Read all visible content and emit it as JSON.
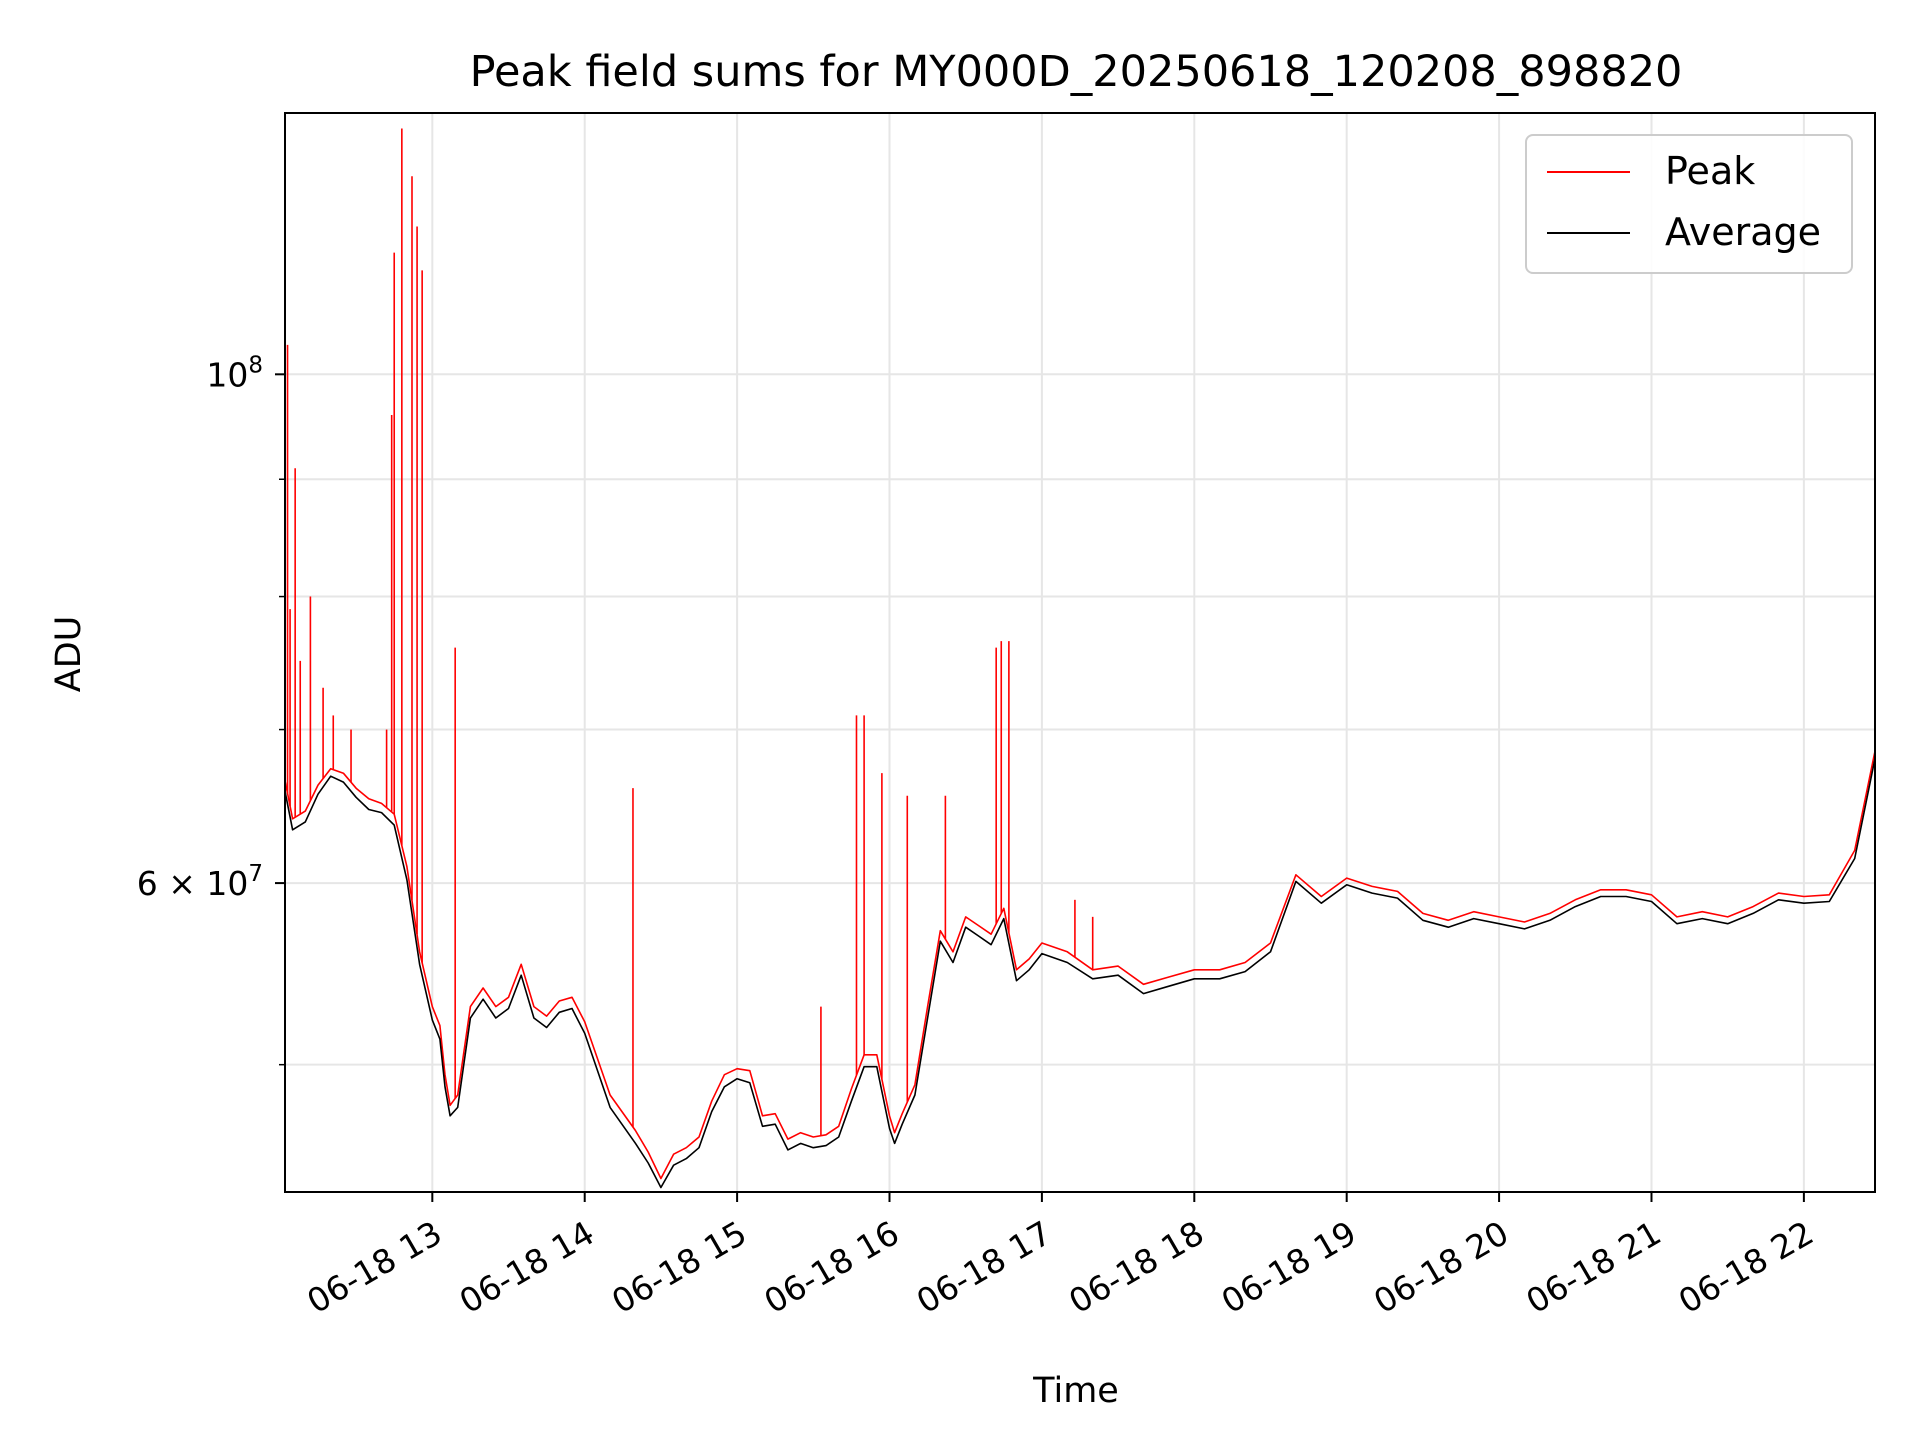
{
  "chart_data": {
    "type": "line",
    "title": "Peak field sums for MY000D_20250618_120208_898820",
    "xlabel": "Time",
    "ylabel": "ADU",
    "y_scale": "log",
    "ylim": [
      44000000,
      130000000
    ],
    "xlim": [
      "2025-06-18 12:02",
      "2025-06-18 22:28"
    ],
    "grid": true,
    "legend_position": "top-right",
    "x_ticks": [
      {
        "label": "06-18 13",
        "value": "2025-06-18 13:00"
      },
      {
        "label": "06-18 14",
        "value": "2025-06-18 14:00"
      },
      {
        "label": "06-18 15",
        "value": "2025-06-18 15:00"
      },
      {
        "label": "06-18 16",
        "value": "2025-06-18 16:00"
      },
      {
        "label": "06-18 17",
        "value": "2025-06-18 17:00"
      },
      {
        "label": "06-18 18",
        "value": "2025-06-18 18:00"
      },
      {
        "label": "06-18 19",
        "value": "2025-06-18 19:00"
      },
      {
        "label": "06-18 20",
        "value": "2025-06-18 20:00"
      },
      {
        "label": "06-18 21",
        "value": "2025-06-18 21:00"
      },
      {
        "label": "06-18 22",
        "value": "2025-06-18 22:00"
      }
    ],
    "y_ticks": [
      {
        "label": "10",
        "sup": "8",
        "value": 100000000
      },
      {
        "label": "6 × 10",
        "sup": "7",
        "value": 60000000
      }
    ],
    "y_minor_grid": [
      50000000,
      70000000,
      80000000,
      90000000
    ],
    "series": [
      {
        "name": "Peak",
        "color": "#ff0000",
        "points": [
          [
            "2025-06-18 12:02",
            66500000
          ],
          [
            "2025-06-18 12:05",
            64000000
          ],
          [
            "2025-06-18 12:10",
            64500000
          ],
          [
            "2025-06-18 12:15",
            66200000
          ],
          [
            "2025-06-18 12:20",
            67300000
          ],
          [
            "2025-06-18 12:25",
            67000000
          ],
          [
            "2025-06-18 12:30",
            66000000
          ],
          [
            "2025-06-18 12:35",
            65300000
          ],
          [
            "2025-06-18 12:40",
            65000000
          ],
          [
            "2025-06-18 12:45",
            64300000
          ],
          [
            "2025-06-18 12:50",
            61000000
          ],
          [
            "2025-06-18 12:55",
            56000000
          ],
          [
            "2025-06-18 13:00",
            53000000
          ],
          [
            "2025-06-18 13:03",
            52000000
          ],
          [
            "2025-06-18 13:05",
            49500000
          ],
          [
            "2025-06-18 13:07",
            48000000
          ],
          [
            "2025-06-18 13:10",
            48500000
          ],
          [
            "2025-06-18 13:15",
            53000000
          ],
          [
            "2025-06-18 13:20",
            54000000
          ],
          [
            "2025-06-18 13:25",
            53000000
          ],
          [
            "2025-06-18 13:30",
            53500000
          ],
          [
            "2025-06-18 13:35",
            55300000
          ],
          [
            "2025-06-18 13:40",
            53000000
          ],
          [
            "2025-06-18 13:45",
            52500000
          ],
          [
            "2025-06-18 13:50",
            53300000
          ],
          [
            "2025-06-18 13:55",
            53500000
          ],
          [
            "2025-06-18 14:00",
            52200000
          ],
          [
            "2025-06-18 14:10",
            48500000
          ],
          [
            "2025-06-18 14:20",
            46800000
          ],
          [
            "2025-06-18 14:25",
            45800000
          ],
          [
            "2025-06-18 14:30",
            44600000
          ],
          [
            "2025-06-18 14:35",
            45700000
          ],
          [
            "2025-06-18 14:40",
            46000000
          ],
          [
            "2025-06-18 14:45",
            46500000
          ],
          [
            "2025-06-18 14:50",
            48200000
          ],
          [
            "2025-06-18 14:55",
            49500000
          ],
          [
            "2025-06-18 15:00",
            49800000
          ],
          [
            "2025-06-18 15:05",
            49700000
          ],
          [
            "2025-06-18 15:10",
            47500000
          ],
          [
            "2025-06-18 15:15",
            47600000
          ],
          [
            "2025-06-18 15:20",
            46400000
          ],
          [
            "2025-06-18 15:25",
            46700000
          ],
          [
            "2025-06-18 15:30",
            46500000
          ],
          [
            "2025-06-18 15:35",
            46600000
          ],
          [
            "2025-06-18 15:40",
            47000000
          ],
          [
            "2025-06-18 15:45",
            48800000
          ],
          [
            "2025-06-18 15:50",
            50500000
          ],
          [
            "2025-06-18 15:55",
            50500000
          ],
          [
            "2025-06-18 16:00",
            47500000
          ],
          [
            "2025-06-18 16:02",
            46700000
          ],
          [
            "2025-06-18 16:05",
            47600000
          ],
          [
            "2025-06-18 16:10",
            49000000
          ],
          [
            "2025-06-18 16:15",
            53000000
          ],
          [
            "2025-06-18 16:20",
            57200000
          ],
          [
            "2025-06-18 16:25",
            56000000
          ],
          [
            "2025-06-18 16:30",
            58000000
          ],
          [
            "2025-06-18 16:35",
            57500000
          ],
          [
            "2025-06-18 16:40",
            57000000
          ],
          [
            "2025-06-18 16:45",
            58500000
          ],
          [
            "2025-06-18 16:50",
            55000000
          ],
          [
            "2025-06-18 16:55",
            55600000
          ],
          [
            "2025-06-18 17:00",
            56500000
          ],
          [
            "2025-06-18 17:10",
            56000000
          ],
          [
            "2025-06-18 17:20",
            55000000
          ],
          [
            "2025-06-18 17:30",
            55200000
          ],
          [
            "2025-06-18 17:40",
            54200000
          ],
          [
            "2025-06-18 17:50",
            54600000
          ],
          [
            "2025-06-18 18:00",
            55000000
          ],
          [
            "2025-06-18 18:10",
            55000000
          ],
          [
            "2025-06-18 18:20",
            55400000
          ],
          [
            "2025-06-18 18:30",
            56500000
          ],
          [
            "2025-06-18 18:40",
            60500000
          ],
          [
            "2025-06-18 18:50",
            59200000
          ],
          [
            "2025-06-18 19:00",
            60300000
          ],
          [
            "2025-06-18 19:10",
            59800000
          ],
          [
            "2025-06-18 19:20",
            59500000
          ],
          [
            "2025-06-18 19:30",
            58200000
          ],
          [
            "2025-06-18 19:40",
            57800000
          ],
          [
            "2025-06-18 19:50",
            58300000
          ],
          [
            "2025-06-18 20:00",
            58000000
          ],
          [
            "2025-06-18 20:10",
            57700000
          ],
          [
            "2025-06-18 20:20",
            58200000
          ],
          [
            "2025-06-18 20:30",
            59000000
          ],
          [
            "2025-06-18 20:40",
            59600000
          ],
          [
            "2025-06-18 20:50",
            59600000
          ],
          [
            "2025-06-18 21:00",
            59300000
          ],
          [
            "2025-06-18 21:10",
            58000000
          ],
          [
            "2025-06-18 21:20",
            58300000
          ],
          [
            "2025-06-18 21:30",
            58000000
          ],
          [
            "2025-06-18 21:40",
            58600000
          ],
          [
            "2025-06-18 21:50",
            59400000
          ],
          [
            "2025-06-18 22:00",
            59200000
          ],
          [
            "2025-06-18 22:10",
            59300000
          ],
          [
            "2025-06-18 22:20",
            62000000
          ],
          [
            "2025-06-18 22:28",
            68500000
          ]
        ],
        "spikes": [
          [
            "2025-06-18 12:03",
            103000000
          ],
          [
            "2025-06-18 12:04",
            79000000
          ],
          [
            "2025-06-18 12:06",
            91000000
          ],
          [
            "2025-06-18 12:08",
            75000000
          ],
          [
            "2025-06-18 12:12",
            80000000
          ],
          [
            "2025-06-18 12:17",
            73000000
          ],
          [
            "2025-06-18 12:21",
            71000000
          ],
          [
            "2025-06-18 12:28",
            70000000
          ],
          [
            "2025-06-18 12:42",
            70000000
          ],
          [
            "2025-06-18 12:44",
            96000000
          ],
          [
            "2025-06-18 12:45",
            113000000
          ],
          [
            "2025-06-18 12:48",
            128000000
          ],
          [
            "2025-06-18 12:52",
            122000000
          ],
          [
            "2025-06-18 12:54",
            116000000
          ],
          [
            "2025-06-18 12:56",
            111000000
          ],
          [
            "2025-06-18 13:09",
            76000000
          ],
          [
            "2025-06-18 14:19",
            66000000
          ],
          [
            "2025-06-18 15:33",
            53000000
          ],
          [
            "2025-06-18 15:47",
            71000000
          ],
          [
            "2025-06-18 15:50",
            71000000
          ],
          [
            "2025-06-18 15:57",
            67000000
          ],
          [
            "2025-06-18 16:07",
            65500000
          ],
          [
            "2025-06-18 16:22",
            65500000
          ],
          [
            "2025-06-18 16:42",
            76000000
          ],
          [
            "2025-06-18 16:44",
            76500000
          ],
          [
            "2025-06-18 16:47",
            76500000
          ],
          [
            "2025-06-18 17:13",
            59000000
          ],
          [
            "2025-06-18 17:20",
            58000000
          ]
        ]
      },
      {
        "name": "Average",
        "color": "#000000",
        "points": [
          [
            "2025-06-18 12:02",
            65800000
          ],
          [
            "2025-06-18 12:05",
            63300000
          ],
          [
            "2025-06-18 12:10",
            63800000
          ],
          [
            "2025-06-18 12:15",
            65600000
          ],
          [
            "2025-06-18 12:20",
            66800000
          ],
          [
            "2025-06-18 12:25",
            66400000
          ],
          [
            "2025-06-18 12:30",
            65400000
          ],
          [
            "2025-06-18 12:35",
            64600000
          ],
          [
            "2025-06-18 12:40",
            64400000
          ],
          [
            "2025-06-18 12:45",
            63600000
          ],
          [
            "2025-06-18 12:50",
            60200000
          ],
          [
            "2025-06-18 12:55",
            55300000
          ],
          [
            "2025-06-18 13:00",
            52300000
          ],
          [
            "2025-06-18 13:03",
            51300000
          ],
          [
            "2025-06-18 13:05",
            48900000
          ],
          [
            "2025-06-18 13:07",
            47500000
          ],
          [
            "2025-06-18 13:10",
            47900000
          ],
          [
            "2025-06-18 13:15",
            52400000
          ],
          [
            "2025-06-18 13:20",
            53400000
          ],
          [
            "2025-06-18 13:25",
            52400000
          ],
          [
            "2025-06-18 13:30",
            52900000
          ],
          [
            "2025-06-18 13:35",
            54700000
          ],
          [
            "2025-06-18 13:40",
            52400000
          ],
          [
            "2025-06-18 13:45",
            51900000
          ],
          [
            "2025-06-18 13:50",
            52700000
          ],
          [
            "2025-06-18 13:55",
            52900000
          ],
          [
            "2025-06-18 14:00",
            51600000
          ],
          [
            "2025-06-18 14:10",
            47900000
          ],
          [
            "2025-06-18 14:20",
            46200000
          ],
          [
            "2025-06-18 14:25",
            45300000
          ],
          [
            "2025-06-18 14:30",
            44200000
          ],
          [
            "2025-06-18 14:35",
            45200000
          ],
          [
            "2025-06-18 14:40",
            45500000
          ],
          [
            "2025-06-18 14:45",
            46000000
          ],
          [
            "2025-06-18 14:50",
            47700000
          ],
          [
            "2025-06-18 14:55",
            48900000
          ],
          [
            "2025-06-18 15:00",
            49300000
          ],
          [
            "2025-06-18 15:05",
            49100000
          ],
          [
            "2025-06-18 15:10",
            47000000
          ],
          [
            "2025-06-18 15:15",
            47100000
          ],
          [
            "2025-06-18 15:20",
            45900000
          ],
          [
            "2025-06-18 15:25",
            46200000
          ],
          [
            "2025-06-18 15:30",
            46000000
          ],
          [
            "2025-06-18 15:35",
            46100000
          ],
          [
            "2025-06-18 15:40",
            46500000
          ],
          [
            "2025-06-18 15:45",
            48200000
          ],
          [
            "2025-06-18 15:50",
            49900000
          ],
          [
            "2025-06-18 15:55",
            49900000
          ],
          [
            "2025-06-18 16:00",
            46900000
          ],
          [
            "2025-06-18 16:02",
            46200000
          ],
          [
            "2025-06-18 16:05",
            47100000
          ],
          [
            "2025-06-18 16:10",
            48500000
          ],
          [
            "2025-06-18 16:15",
            52400000
          ],
          [
            "2025-06-18 16:20",
            56600000
          ],
          [
            "2025-06-18 16:25",
            55400000
          ],
          [
            "2025-06-18 16:30",
            57400000
          ],
          [
            "2025-06-18 16:35",
            56900000
          ],
          [
            "2025-06-18 16:40",
            56400000
          ],
          [
            "2025-06-18 16:45",
            57900000
          ],
          [
            "2025-06-18 16:50",
            54400000
          ],
          [
            "2025-06-18 16:55",
            55000000
          ],
          [
            "2025-06-18 17:00",
            55900000
          ],
          [
            "2025-06-18 17:10",
            55400000
          ],
          [
            "2025-06-18 17:20",
            54500000
          ],
          [
            "2025-06-18 17:30",
            54700000
          ],
          [
            "2025-06-18 17:40",
            53700000
          ],
          [
            "2025-06-18 17:50",
            54100000
          ],
          [
            "2025-06-18 18:00",
            54500000
          ],
          [
            "2025-06-18 18:10",
            54500000
          ],
          [
            "2025-06-18 18:20",
            54900000
          ],
          [
            "2025-06-18 18:30",
            56000000
          ],
          [
            "2025-06-18 18:40",
            60100000
          ],
          [
            "2025-06-18 18:50",
            58800000
          ],
          [
            "2025-06-18 19:00",
            59900000
          ],
          [
            "2025-06-18 19:10",
            59400000
          ],
          [
            "2025-06-18 19:20",
            59100000
          ],
          [
            "2025-06-18 19:30",
            57800000
          ],
          [
            "2025-06-18 19:40",
            57400000
          ],
          [
            "2025-06-18 19:50",
            57900000
          ],
          [
            "2025-06-18 20:00",
            57600000
          ],
          [
            "2025-06-18 20:10",
            57300000
          ],
          [
            "2025-06-18 20:20",
            57800000
          ],
          [
            "2025-06-18 20:30",
            58600000
          ],
          [
            "2025-06-18 20:40",
            59200000
          ],
          [
            "2025-06-18 20:50",
            59200000
          ],
          [
            "2025-06-18 21:00",
            58900000
          ],
          [
            "2025-06-18 21:10",
            57600000
          ],
          [
            "2025-06-18 21:20",
            57900000
          ],
          [
            "2025-06-18 21:30",
            57600000
          ],
          [
            "2025-06-18 21:40",
            58200000
          ],
          [
            "2025-06-18 21:50",
            59000000
          ],
          [
            "2025-06-18 22:00",
            58800000
          ],
          [
            "2025-06-18 22:10",
            58900000
          ],
          [
            "2025-06-18 22:20",
            61500000
          ],
          [
            "2025-06-18 22:28",
            68000000
          ]
        ]
      }
    ]
  }
}
